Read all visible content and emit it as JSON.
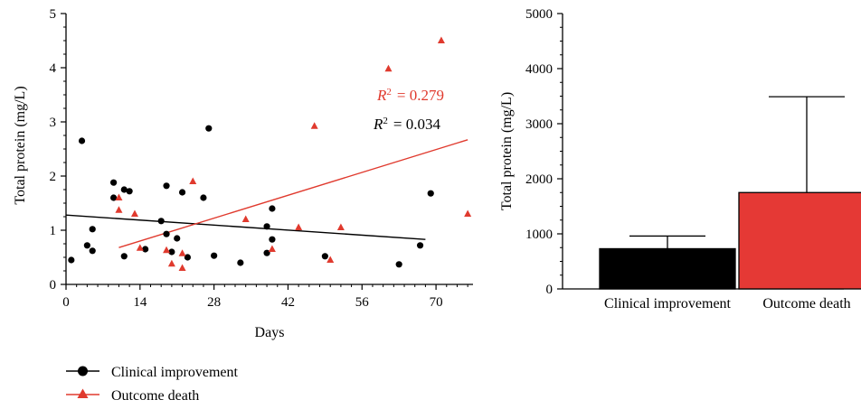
{
  "colors": {
    "improvement": "#000000",
    "death": "#e03a2e",
    "bar_death": "#e53935"
  },
  "chart_data": [
    {
      "type": "scatter",
      "xlabel": "Days",
      "ylabel": "Total protein (mg/L)",
      "xlim": [
        0,
        77
      ],
      "ylim": [
        0,
        5
      ],
      "xticks": [
        0,
        14,
        28,
        42,
        56,
        70
      ],
      "yticks": [
        0,
        1,
        2,
        3,
        4,
        5
      ],
      "annotations": [
        {
          "prefix": "R",
          "sup": "2",
          "value": "= 0.279",
          "series": "Outcome death"
        },
        {
          "prefix": "R",
          "sup": "2",
          "value": "= 0.034",
          "series": "Clinical improvement"
        }
      ],
      "legend": [
        {
          "label": "Clinical improvement",
          "marker": "circle"
        },
        {
          "label": "Outcome death",
          "marker": "triangle"
        }
      ],
      "series": [
        {
          "name": "Clinical improvement",
          "marker": "circle",
          "points": [
            [
              1,
              0.45
            ],
            [
              3,
              2.65
            ],
            [
              4,
              0.72
            ],
            [
              5,
              1.02
            ],
            [
              5,
              0.62
            ],
            [
              9,
              1.88
            ],
            [
              9,
              1.6
            ],
            [
              11,
              1.75
            ],
            [
              11,
              0.52
            ],
            [
              12,
              1.72
            ],
            [
              15,
              0.65
            ],
            [
              18,
              1.17
            ],
            [
              19,
              1.82
            ],
            [
              19,
              0.93
            ],
            [
              20,
              0.6
            ],
            [
              21,
              0.85
            ],
            [
              22,
              1.7
            ],
            [
              23,
              0.5
            ],
            [
              26,
              1.6
            ],
            [
              27,
              2.88
            ],
            [
              28,
              0.53
            ],
            [
              33,
              0.4
            ],
            [
              38,
              1.07
            ],
            [
              38,
              0.58
            ],
            [
              39,
              1.4
            ],
            [
              39,
              0.83
            ],
            [
              49,
              0.52
            ],
            [
              63,
              0.37
            ],
            [
              67,
              0.72
            ],
            [
              69,
              1.68
            ]
          ],
          "trend": {
            "x": [
              0,
              68
            ],
            "y": [
              1.28,
              0.83
            ]
          }
        },
        {
          "name": "Outcome death",
          "marker": "triangle",
          "points": [
            [
              10,
              1.6
            ],
            [
              10,
              1.37
            ],
            [
              13,
              1.3
            ],
            [
              14,
              0.67
            ],
            [
              19,
              0.63
            ],
            [
              20,
              0.38
            ],
            [
              22,
              0.57
            ],
            [
              22,
              0.3
            ],
            [
              24,
              1.9
            ],
            [
              34,
              1.2
            ],
            [
              39,
              0.65
            ],
            [
              44,
              1.05
            ],
            [
              47,
              2.92
            ],
            [
              50,
              0.45
            ],
            [
              52,
              1.05
            ],
            [
              61,
              3.98
            ],
            [
              71,
              4.5
            ],
            [
              76,
              1.3
            ]
          ],
          "trend": {
            "x": [
              10,
              76
            ],
            "y": [
              0.68,
              2.67
            ]
          }
        }
      ]
    },
    {
      "type": "bar",
      "ylabel": "Total protein (mg/L)",
      "ylim": [
        0,
        5000
      ],
      "yticks": [
        0,
        1000,
        2000,
        3000,
        4000,
        5000
      ],
      "categories": [
        "Clinical improvement",
        "Outcome death"
      ],
      "values": [
        730,
        1750
      ],
      "error_upper": [
        960,
        3490
      ]
    }
  ]
}
